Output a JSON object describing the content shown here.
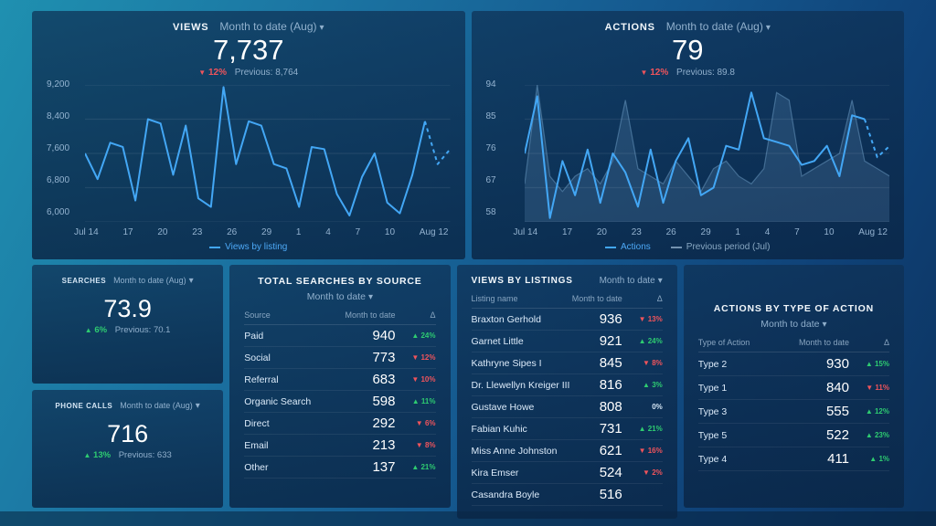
{
  "colors": {
    "accent": "#43a7f5",
    "up": "#2ecc71",
    "down": "#f0545c"
  },
  "icons": {
    "chevron_down": "▾",
    "up_arrow": "▲",
    "down_arrow": "▼"
  },
  "views": {
    "title": "VIEWS",
    "period": "Month to date (Aug)",
    "value": "7,737",
    "delta": "12%",
    "previous": "Previous: 8,764",
    "legend": [
      "Views by listing"
    ],
    "chart_data": {
      "type": "line",
      "ylim": [
        6000,
        9200
      ],
      "y_ticks": [
        "9,200",
        "8,400",
        "7,600",
        "6,800",
        "6,000"
      ],
      "x_ticks": [
        "Jul 14",
        "17",
        "20",
        "23",
        "26",
        "29",
        "1",
        "4",
        "7",
        "10",
        "Aug 12"
      ],
      "grid": true,
      "legend_position": "bottom",
      "series": [
        {
          "name": "Views by listing",
          "color": "#43a7f5",
          "dash_from": 27,
          "values": [
            7600,
            7000,
            7850,
            7750,
            6500,
            8400,
            8300,
            7100,
            8250,
            6550,
            6350,
            9150,
            7350,
            8350,
            8250,
            7350,
            7250,
            6350,
            7750,
            7700,
            6650,
            6150,
            7050,
            7600,
            6450,
            6200,
            7100,
            8350,
            7350,
            7700
          ]
        }
      ]
    }
  },
  "actions": {
    "title": "ACTIONS",
    "period": "Month to date (Aug)",
    "value": "79",
    "delta": "12%",
    "previous": "Previous: 89.8",
    "legend": [
      "Actions",
      "Previous period (Jul)"
    ],
    "chart_data": {
      "type": "line",
      "ylim": [
        58,
        94
      ],
      "y_ticks": [
        "94",
        "85",
        "76",
        "67",
        "58"
      ],
      "x_ticks": [
        "Jul 14",
        "17",
        "20",
        "23",
        "26",
        "29",
        "1",
        "4",
        "7",
        "10",
        "Aug 12"
      ],
      "grid": true,
      "legend_position": "bottom",
      "series": [
        {
          "name": "Previous period (Jul)",
          "color": "rgba(150,200,240,0.35)",
          "area": true,
          "values": [
            68,
            94,
            70,
            66,
            70,
            72,
            68,
            74,
            90,
            72,
            70,
            68,
            74,
            70,
            66,
            72,
            74,
            70,
            68,
            72,
            92,
            90,
            70,
            72,
            74,
            76,
            90,
            74,
            72,
            70
          ]
        },
        {
          "name": "Actions",
          "color": "#43a7f5",
          "dash_from": 27,
          "values": [
            76,
            91,
            59,
            74,
            65,
            77,
            63,
            76,
            71,
            62,
            77,
            63,
            74,
            80,
            65,
            67,
            78,
            77,
            92,
            80,
            79,
            78,
            73,
            74,
            78,
            70,
            86,
            85,
            75,
            78
          ]
        }
      ]
    }
  },
  "searches": {
    "title": "SEARCHES",
    "period": "Month to date (Aug)",
    "value": "73.9",
    "delta": "6%",
    "previous": "Previous: 70.1"
  },
  "phone_calls": {
    "title": "PHONE CALLS",
    "period": "Month to date (Aug)",
    "value": "716",
    "delta": "13%",
    "previous": "Previous: 633"
  },
  "searches_by_source": {
    "title": "TOTAL SEARCHES BY SOURCE",
    "period": "Month to date",
    "columns": [
      "Source",
      "Month to date",
      "Δ"
    ],
    "rows": [
      {
        "label": "Paid",
        "value": "940",
        "delta": "24%",
        "dir": "up"
      },
      {
        "label": "Social",
        "value": "773",
        "delta": "12%",
        "dir": "down"
      },
      {
        "label": "Referral",
        "value": "683",
        "delta": "10%",
        "dir": "down"
      },
      {
        "label": "Organic Search",
        "value": "598",
        "delta": "11%",
        "dir": "up"
      },
      {
        "label": "Direct",
        "value": "292",
        "delta": "6%",
        "dir": "down"
      },
      {
        "label": "Email",
        "value": "213",
        "delta": "8%",
        "dir": "down"
      },
      {
        "label": "Other",
        "value": "137",
        "delta": "21%",
        "dir": "up"
      }
    ]
  },
  "views_by_listings": {
    "title": "VIEWS BY LISTINGS",
    "period": "Month to date",
    "columns": [
      "Listing name",
      "Month to date",
      "Δ"
    ],
    "rows": [
      {
        "label": "Braxton Gerhold",
        "value": "936",
        "delta": "13%",
        "dir": "down"
      },
      {
        "label": "Garnet Little",
        "value": "921",
        "delta": "24%",
        "dir": "up"
      },
      {
        "label": "Kathryne Sipes I",
        "value": "845",
        "delta": "8%",
        "dir": "down"
      },
      {
        "label": "Dr. Llewellyn Kreiger III",
        "value": "816",
        "delta": "3%",
        "dir": "up"
      },
      {
        "label": "Gustave Howe",
        "value": "808",
        "delta": "0%",
        "dir": "zero"
      },
      {
        "label": "Fabian Kuhic",
        "value": "731",
        "delta": "21%",
        "dir": "up"
      },
      {
        "label": "Miss Anne Johnston",
        "value": "621",
        "delta": "16%",
        "dir": "down"
      },
      {
        "label": "Kira Emser",
        "value": "524",
        "delta": "2%",
        "dir": "down"
      },
      {
        "label": "Casandra Boyle",
        "value": "516",
        "delta": "",
        "dir": "zero"
      }
    ]
  },
  "actions_by_type": {
    "title": "ACTIONS BY TYPE OF ACTION",
    "period": "Month to date",
    "columns": [
      "Type of Action",
      "Month to date",
      "Δ"
    ],
    "rows": [
      {
        "label": "Type 2",
        "value": "930",
        "delta": "15%",
        "dir": "up"
      },
      {
        "label": "Type 1",
        "value": "840",
        "delta": "11%",
        "dir": "down"
      },
      {
        "label": "Type 3",
        "value": "555",
        "delta": "12%",
        "dir": "up"
      },
      {
        "label": "Type 5",
        "value": "522",
        "delta": "23%",
        "dir": "up"
      },
      {
        "label": "Type 4",
        "value": "411",
        "delta": "1%",
        "dir": "up"
      }
    ]
  }
}
